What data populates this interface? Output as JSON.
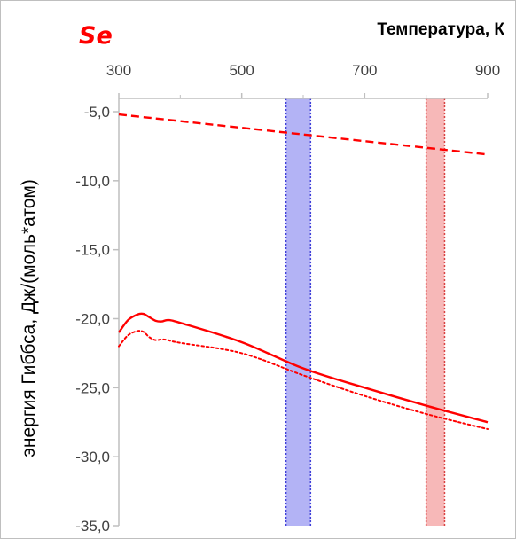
{
  "chart_data": {
    "type": "line",
    "title": "Se",
    "xlabel": "Температура, К",
    "ylabel": "энергия Гиббса, Дж/(моль*атом)",
    "xlim": [
      300,
      900
    ],
    "ylim": [
      -35,
      -5
    ],
    "x_ticks": [
      "300",
      "500",
      "700",
      "900"
    ],
    "x_tick_values": [
      300,
      500,
      700,
      900
    ],
    "y_ticks": [
      "-5,0",
      "-10,0",
      "-15,0",
      "-20,0",
      "-25,0",
      "-30,0",
      "-35,0"
    ],
    "y_tick_values": [
      -5,
      -10,
      -15,
      -20,
      -25,
      -30,
      -35
    ],
    "x_axis_position": "top",
    "y_axis_inverted": true,
    "grid": false,
    "bands": [
      {
        "x_start": 572,
        "x_end": 612,
        "color": "#b3b3f5",
        "edge_color": "#3f3fd9"
      },
      {
        "x_start": 800,
        "x_end": 830,
        "color": "#f7b8b8",
        "edge_color": "#d94040"
      }
    ],
    "series": [
      {
        "style": "dashed",
        "color": "#ff0000",
        "x": [
          300,
          900
        ],
        "y": [
          -5.2,
          -8.1
        ]
      },
      {
        "style": "solid",
        "color": "#ff0000",
        "x": [
          300,
          315,
          330,
          340,
          350,
          360,
          370,
          380,
          400,
          500,
          600,
          700,
          800,
          900
        ],
        "y": [
          -21.0,
          -20.1,
          -19.7,
          -19.65,
          -19.9,
          -20.15,
          -20.2,
          -20.1,
          -20.3,
          -21.7,
          -23.6,
          -25.0,
          -26.3,
          -27.5
        ]
      },
      {
        "style": "dotted",
        "color": "#ff0000",
        "x": [
          300,
          315,
          330,
          340,
          350,
          360,
          370,
          380,
          400,
          500,
          600,
          700,
          800,
          900
        ],
        "y": [
          -22.0,
          -21.2,
          -20.9,
          -20.95,
          -21.35,
          -21.55,
          -21.5,
          -21.55,
          -21.75,
          -22.5,
          -24.1,
          -25.6,
          -26.9,
          -28.0
        ]
      }
    ]
  }
}
